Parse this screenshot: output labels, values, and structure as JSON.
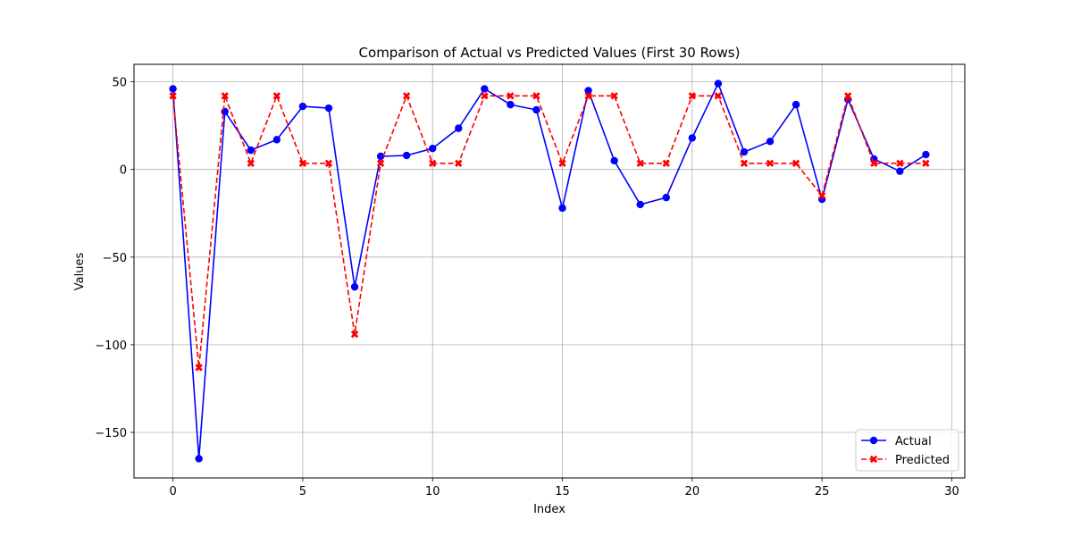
{
  "chart_data": {
    "type": "line",
    "title": "Comparison of Actual vs Predicted Values (First 30 Rows)",
    "xlabel": "Index",
    "ylabel": "Values",
    "xlim": [
      -1.5,
      30.5
    ],
    "ylim": [
      -176,
      60
    ],
    "xticks": [
      0,
      5,
      10,
      15,
      20,
      25,
      30
    ],
    "yticks": [
      50,
      0,
      -50,
      -100,
      -150
    ],
    "ytick_labels": [
      "50",
      "0",
      "−50",
      "−100",
      "−150"
    ],
    "grid": true,
    "legend_position": "lower-right",
    "x": [
      0,
      1,
      2,
      3,
      4,
      5,
      6,
      7,
      8,
      9,
      10,
      11,
      12,
      13,
      14,
      15,
      16,
      17,
      18,
      19,
      20,
      21,
      22,
      23,
      24,
      25,
      26,
      27,
      28,
      29
    ],
    "series": [
      {
        "name": "Actual",
        "color": "#0000ff",
        "line": "solid",
        "marker": "circle",
        "values": [
          46,
          -165,
          33,
          11,
          17,
          36,
          35,
          -67,
          7.5,
          8,
          12,
          23.5,
          46,
          37,
          34,
          -22,
          45,
          5,
          -20,
          -16,
          18,
          49,
          10,
          16,
          37,
          -17,
          40,
          6,
          -1,
          8.5
        ]
      },
      {
        "name": "Predicted",
        "color": "#ff0000",
        "line": "dashed",
        "marker": "x",
        "values": [
          42,
          -113,
          42,
          3.5,
          42,
          3.5,
          3.5,
          -94,
          3.5,
          42,
          3.5,
          3.5,
          42,
          42,
          42,
          3.5,
          42,
          42,
          3.5,
          3.5,
          42,
          42,
          3.5,
          3.5,
          3.5,
          -15,
          42,
          3.5,
          3.5,
          3.5
        ]
      }
    ]
  }
}
